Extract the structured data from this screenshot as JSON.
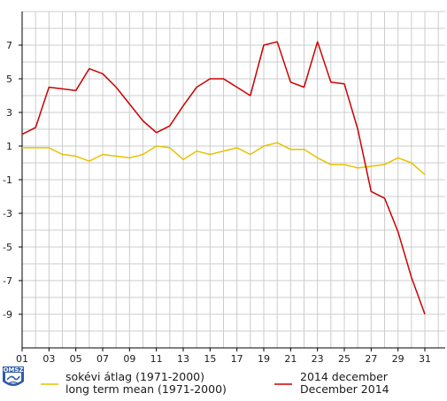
{
  "chart_data": {
    "type": "line",
    "title": "",
    "xlabel": "",
    "ylabel": "",
    "x": [
      1,
      2,
      3,
      4,
      5,
      6,
      7,
      8,
      9,
      10,
      11,
      12,
      13,
      14,
      15,
      16,
      17,
      18,
      19,
      20,
      21,
      22,
      23,
      24,
      25,
      26,
      27,
      28,
      29,
      30,
      31
    ],
    "x_tick_labels": [
      "01",
      "03",
      "05",
      "07",
      "09",
      "11",
      "13",
      "15",
      "17",
      "19",
      "21",
      "23",
      "25",
      "27",
      "29",
      "31"
    ],
    "y_tick_labels": [
      "7",
      "5",
      "3",
      "1",
      "-1",
      "-3",
      "-5",
      "-7",
      "-9"
    ],
    "xlim": [
      1,
      31
    ],
    "ylim": [
      -11,
      9
    ],
    "grid": true,
    "series": [
      {
        "name": "sokévi átlag (1971-2000)",
        "name_en": "long term mean (1971-2000)",
        "color": "#e6c200",
        "values": [
          0.9,
          0.9,
          0.9,
          0.5,
          0.4,
          0.1,
          0.5,
          0.4,
          0.3,
          0.5,
          1.0,
          0.9,
          0.2,
          0.7,
          0.5,
          0.7,
          0.9,
          0.5,
          1.0,
          1.2,
          0.8,
          0.8,
          0.3,
          -0.1,
          -0.1,
          -0.3,
          -0.2,
          -0.1,
          0.3,
          0.0,
          -0.7
        ]
      },
      {
        "name": "2014 december",
        "name_en": "December 2014",
        "color": "#cc0000",
        "values": [
          1.7,
          2.1,
          4.5,
          4.4,
          4.3,
          5.6,
          5.3,
          4.5,
          3.5,
          2.5,
          1.8,
          2.2,
          3.4,
          4.5,
          5.0,
          5.0,
          4.5,
          4.0,
          7.0,
          7.2,
          4.8,
          4.5,
          7.2,
          4.8,
          4.7,
          2.0,
          -1.7,
          -2.1,
          -4.1,
          -6.8,
          -9.0
        ]
      }
    ]
  },
  "logo": {
    "text": "OMSZ"
  }
}
